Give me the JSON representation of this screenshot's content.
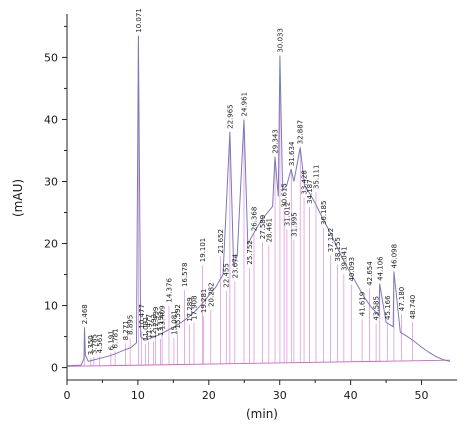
{
  "chart_data": {
    "type": "line",
    "title": "",
    "xlabel": "(min)",
    "ylabel": "(mAU)",
    "xlim": [
      0,
      55
    ],
    "ylim": [
      -2,
      57
    ],
    "xticks": [
      0,
      10,
      20,
      30,
      40,
      50
    ],
    "yticks": [
      0,
      10,
      20,
      30,
      40,
      50
    ],
    "grid": false,
    "colors": {
      "trace": "#7a7ab8",
      "baseline": "#cc66cc",
      "peak_lines": "#d98cd9",
      "axis": "#222222"
    },
    "series": [
      {
        "x": [
          0,
          2,
          2.4,
          2.47,
          2.6,
          3,
          4,
          5,
          6,
          7,
          8,
          9,
          9.8,
          10.07,
          10.4,
          11,
          12,
          13,
          14,
          15,
          16,
          17,
          18,
          19,
          20,
          21,
          22,
          22.97,
          23.5,
          24,
          24.96,
          25.5,
          26,
          27,
          28,
          29,
          29.34,
          29.8,
          30.03,
          30.4,
          31,
          31.6,
          32,
          32.89,
          33.5,
          34,
          35,
          36,
          37,
          38,
          39,
          40,
          41,
          42,
          43,
          44,
          44.1,
          45,
          46,
          46.1,
          47,
          48,
          49,
          50,
          51,
          52,
          53,
          54
        ],
        "y": [
          0.3,
          0.4,
          1.5,
          6.5,
          2,
          1,
          1.3,
          1.6,
          1.9,
          2.3,
          2.8,
          3.2,
          4,
          53.5,
          5,
          4.4,
          4.8,
          5.3,
          5.9,
          6.5,
          7.2,
          8,
          9,
          10.2,
          11.6,
          13,
          15,
          38,
          16.5,
          18,
          40,
          19.8,
          21,
          23,
          24.6,
          26,
          34,
          27.6,
          50.3,
          28.6,
          29.4,
          32,
          30,
          35.5,
          29.4,
          28.5,
          26.5,
          24.2,
          22,
          19.6,
          17.3,
          15.2,
          13.2,
          11.2,
          9.6,
          8.4,
          13.5,
          7.3,
          6.6,
          15.5,
          5.7,
          5,
          4.2,
          3.3,
          2.5,
          1.8,
          1.3,
          1.0
        ]
      }
    ],
    "peak_labels": [
      {
        "text": "2.468",
        "x": 2.47,
        "y": 6.5
      },
      {
        "text": "3.350",
        "x": 3.35,
        "y": 1.5
      },
      {
        "text": "3.785",
        "x": 3.79,
        "y": 1.7
      },
      {
        "text": "4.561",
        "x": 4.56,
        "y": 1.8
      },
      {
        "text": "6.191",
        "x": 6.19,
        "y": 2.3
      },
      {
        "text": "6.781",
        "x": 6.78,
        "y": 2.6
      },
      {
        "text": "8.271",
        "x": 8.27,
        "y": 3.9
      },
      {
        "text": "8.895",
        "x": 8.9,
        "y": 4.8
      },
      {
        "text": "10.071",
        "x": 10.07,
        "y": 53.5
      },
      {
        "text": "10.477",
        "x": 10.48,
        "y": 5.8
      },
      {
        "text": "11.091",
        "x": 11.09,
        "y": 3.8
      },
      {
        "text": "11.477",
        "x": 11.48,
        "y": 4.2
      },
      {
        "text": "12.193",
        "x": 12.19,
        "y": 4.2
      },
      {
        "text": "12.499",
        "x": 12.5,
        "y": 5.4
      },
      {
        "text": "13.193",
        "x": 13.19,
        "y": 4.6
      },
      {
        "text": "13.409",
        "x": 13.41,
        "y": 5.6
      },
      {
        "text": "14.376",
        "x": 14.38,
        "y": 10
      },
      {
        "text": "15.081",
        "x": 15.08,
        "y": 4.8
      },
      {
        "text": "15.592",
        "x": 15.59,
        "y": 5.8
      },
      {
        "text": "16.578",
        "x": 16.58,
        "y": 12.5
      },
      {
        "text": "17.289",
        "x": 17.29,
        "y": 6.9
      },
      {
        "text": "17.908",
        "x": 17.91,
        "y": 7.2
      },
      {
        "text": "19.101",
        "x": 19.1,
        "y": 16.5
      },
      {
        "text": "19.281",
        "x": 19.28,
        "y": 8.3
      },
      {
        "text": "20.282",
        "x": 20.28,
        "y": 9.3
      },
      {
        "text": "21.652",
        "x": 21.65,
        "y": 17.9
      },
      {
        "text": "22.455",
        "x": 22.46,
        "y": 12.4
      },
      {
        "text": "22.965",
        "x": 22.97,
        "y": 38
      },
      {
        "text": "23.674",
        "x": 23.67,
        "y": 13.9
      },
      {
        "text": "24.961",
        "x": 24.96,
        "y": 40
      },
      {
        "text": "25.752",
        "x": 25.75,
        "y": 16.1
      },
      {
        "text": "26.368",
        "x": 26.37,
        "y": 21.5
      },
      {
        "text": "27.589",
        "x": 27.59,
        "y": 20.2
      },
      {
        "text": "28.461",
        "x": 28.46,
        "y": 19.7
      },
      {
        "text": "29.343",
        "x": 29.34,
        "y": 34
      },
      {
        "text": "30.033",
        "x": 30.03,
        "y": 50.3
      },
      {
        "text": "30.615",
        "x": 30.62,
        "y": 25.3
      },
      {
        "text": "31.012",
        "x": 31.01,
        "y": 22.3
      },
      {
        "text": "31.634",
        "x": 31.63,
        "y": 32
      },
      {
        "text": "31.995",
        "x": 32,
        "y": 20.6
      },
      {
        "text": "32.887",
        "x": 32.89,
        "y": 35.5
      },
      {
        "text": "33.428",
        "x": 33.43,
        "y": 27.4
      },
      {
        "text": "34.187",
        "x": 34.19,
        "y": 25.9
      },
      {
        "text": "35.111",
        "x": 35.11,
        "y": 28.3
      },
      {
        "text": "36.185",
        "x": 36.19,
        "y": 22.5
      },
      {
        "text": "37.152",
        "x": 37.15,
        "y": 18.1
      },
      {
        "text": "38.155",
        "x": 38.16,
        "y": 16.6
      },
      {
        "text": "39.041",
        "x": 39.04,
        "y": 15.1
      },
      {
        "text": "40.093",
        "x": 40.09,
        "y": 13.4
      },
      {
        "text": "41.619",
        "x": 41.62,
        "y": 7.8
      },
      {
        "text": "42.654",
        "x": 42.65,
        "y": 12.7
      },
      {
        "text": "43.585",
        "x": 43.59,
        "y": 7.1
      },
      {
        "text": "44.106",
        "x": 44.11,
        "y": 13.5
      },
      {
        "text": "45.166",
        "x": 45.17,
        "y": 7.2
      },
      {
        "text": "46.098",
        "x": 46.1,
        "y": 15.5
      },
      {
        "text": "47.180",
        "x": 47.18,
        "y": 8.6
      },
      {
        "text": "48.740",
        "x": 48.74,
        "y": 7.3
      }
    ]
  }
}
